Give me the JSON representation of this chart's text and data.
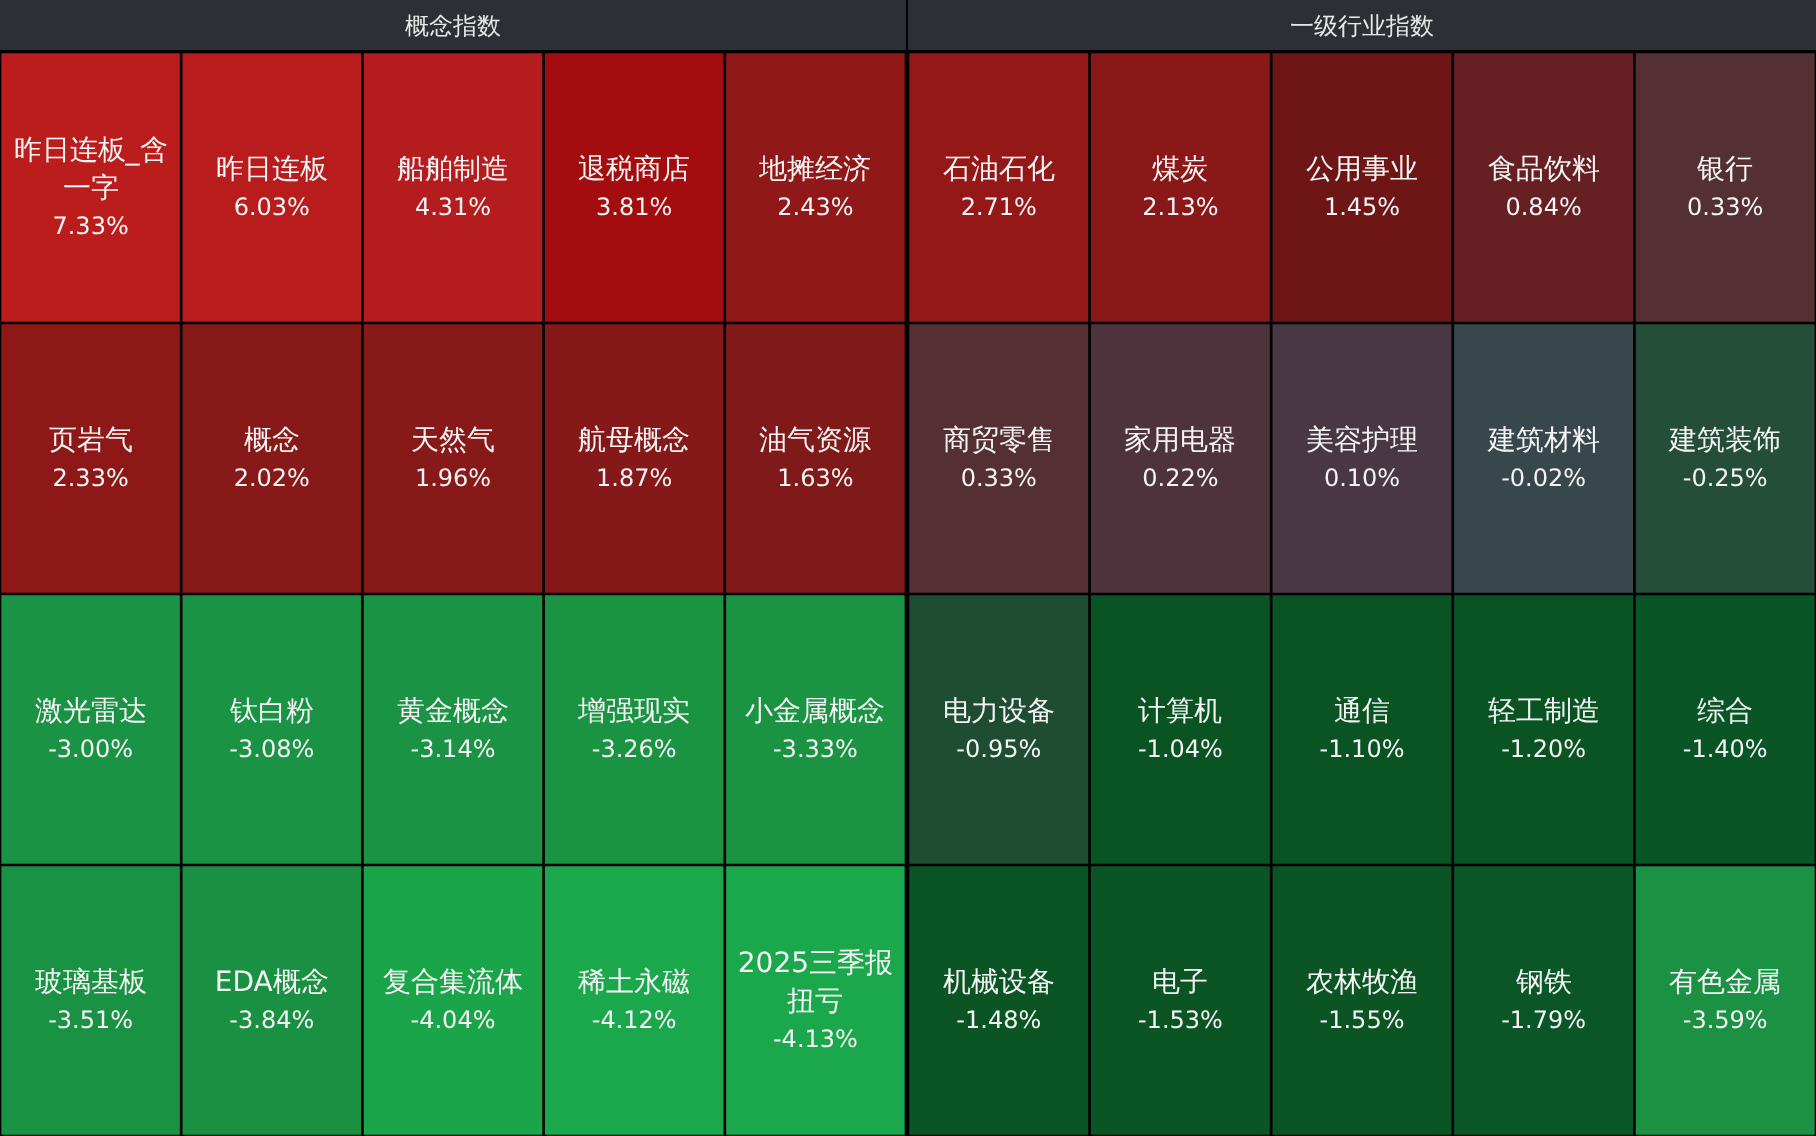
{
  "chart_data": [
    {
      "type": "other",
      "title": "概念指数",
      "categories": [
        "昨日连板_含一字",
        "昨日连板",
        "船舶制造",
        "退税商店",
        "地摊经济",
        "页岩气",
        "概念",
        "天然气",
        "航母概念",
        "油气资源",
        "激光雷达",
        "钛白粉",
        "黄金概念",
        "增强现实",
        "小金属概念",
        "玻璃基板",
        "EDA概念",
        "复合集流体",
        "稀土永磁",
        "2025三季报扭亏"
      ],
      "values": [
        7.33,
        6.03,
        4.31,
        3.81,
        2.43,
        2.33,
        2.02,
        1.96,
        1.87,
        1.63,
        -3.0,
        -3.08,
        -3.14,
        -3.26,
        -3.33,
        -3.51,
        -3.84,
        -4.04,
        -4.12,
        -4.13
      ],
      "value_labels": [
        "7.33%",
        "6.03%",
        "4.31%",
        "3.81%",
        "2.43%",
        "2.33%",
        "2.02%",
        "1.96%",
        "1.87%",
        "1.63%",
        "-3.00%",
        "-3.08%",
        "-3.14%",
        "-3.26%",
        "-3.33%",
        "-3.51%",
        "-3.84%",
        "-4.04%",
        "-4.12%",
        "-4.13%"
      ]
    },
    {
      "type": "other",
      "title": "一级行业指数",
      "categories": [
        "石油石化",
        "煤炭",
        "公用事业",
        "食品饮料",
        "银行",
        "商贸零售",
        "家用电器",
        "美容护理",
        "建筑材料",
        "建筑装饰",
        "电力设备",
        "计算机",
        "通信",
        "轻工制造",
        "综合",
        "机械设备",
        "电子",
        "农林牧渔",
        "钢铁",
        "有色金属"
      ],
      "values": [
        2.71,
        2.13,
        1.45,
        0.84,
        0.33,
        0.33,
        0.22,
        0.1,
        -0.02,
        -0.25,
        -0.95,
        -1.04,
        -1.1,
        -1.2,
        -1.4,
        -1.48,
        -1.53,
        -1.55,
        -1.79,
        -3.59
      ],
      "value_labels": [
        "2.71%",
        "2.13%",
        "1.45%",
        "0.84%",
        "0.33%",
        "0.33%",
        "0.22%",
        "0.10%",
        "-0.02%",
        "-0.25%",
        "-0.95%",
        "-1.04%",
        "-1.10%",
        "-1.20%",
        "-1.40%",
        "-1.48%",
        "-1.53%",
        "-1.55%",
        "-1.79%",
        "-3.59%"
      ]
    }
  ]
}
